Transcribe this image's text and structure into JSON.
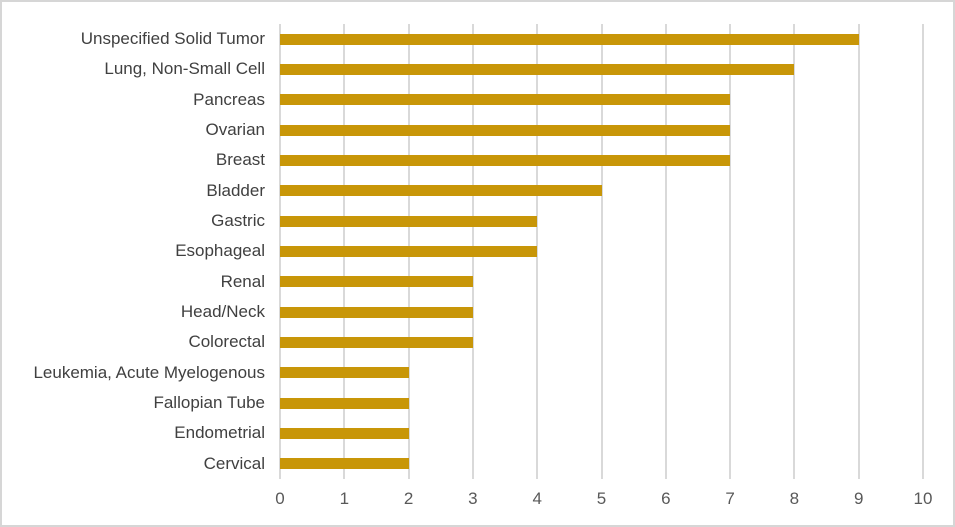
{
  "chart_data": {
    "type": "bar",
    "orientation": "horizontal",
    "title": "",
    "xlabel": "",
    "ylabel": "",
    "categories": [
      "Unspecified Solid Tumor",
      "Lung, Non-Small Cell",
      "Pancreas",
      "Ovarian",
      "Breast",
      "Bladder",
      "Gastric",
      "Esophageal",
      "Renal",
      "Head/Neck",
      "Colorectal",
      "Leukemia, Acute Myelogenous",
      "Fallopian Tube",
      "Endometrial",
      "Cervical"
    ],
    "values": [
      9,
      8,
      7,
      7,
      7,
      5,
      4,
      4,
      3,
      3,
      3,
      2,
      2,
      2,
      2
    ],
    "xlim": [
      0,
      10
    ],
    "xticks": [
      0,
      1,
      2,
      3,
      4,
      5,
      6,
      7,
      8,
      9,
      10
    ],
    "grid": "vertical-only",
    "legend": "none",
    "colors": {
      "bar": "#c89608",
      "gridline": "#d9d9d9",
      "frame_border": "#d6d6d6",
      "category_label": "#404040",
      "tick_label": "#595959",
      "background": "#ffffff"
    }
  }
}
